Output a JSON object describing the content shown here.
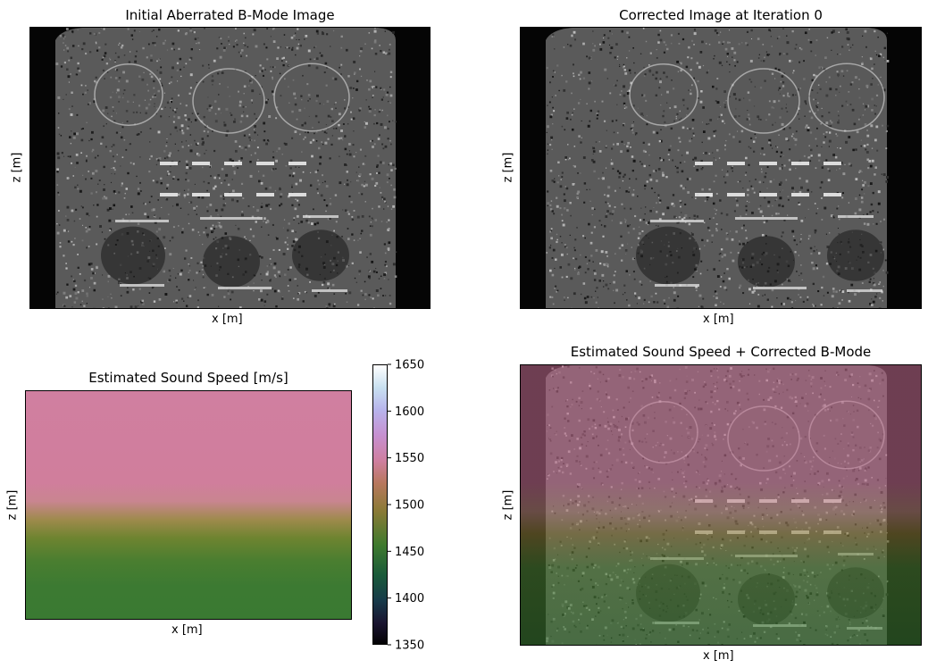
{
  "chart_data": [
    {
      "type": "heatmap",
      "title": "Initial Aberrated B-Mode Image",
      "xlabel": "x [m]",
      "ylabel": "z [m]",
      "colormap": "gray",
      "x_ticks": [],
      "y_ticks": []
    },
    {
      "type": "heatmap",
      "title": "Corrected Image at Iteration 0",
      "xlabel": "x [m]",
      "ylabel": "z [m]",
      "colormap": "gray",
      "x_ticks": [],
      "y_ticks": []
    },
    {
      "type": "heatmap",
      "title": "Estimated Sound Speed [m/s]",
      "xlabel": "x [m]",
      "ylabel": "z [m]",
      "colormap": "cubehelix",
      "colorbar": {
        "min": 1350,
        "max": 1650,
        "ticks": [
          "1350",
          "1400",
          "1450",
          "1500",
          "1550",
          "1600",
          "1650"
        ]
      },
      "depth_profile": [
        {
          "z": 0.0,
          "value": 1540
        },
        {
          "z": 0.4,
          "value": 1540
        },
        {
          "z": 0.5,
          "value": 1520
        },
        {
          "z": 0.62,
          "value": 1480
        },
        {
          "z": 0.8,
          "value": 1460
        },
        {
          "z": 1.0,
          "value": 1460
        }
      ]
    },
    {
      "type": "heatmap",
      "title": "Estimated Sound Speed + Corrected B-Mode",
      "xlabel": "x [m]",
      "ylabel": "z [m]",
      "colormap": "cubehelix + gray overlay"
    }
  ],
  "colors": {
    "speed_high": "#d07fa0",
    "speed_mid": "#7a7a2a",
    "speed_low": "#3a7a32"
  }
}
